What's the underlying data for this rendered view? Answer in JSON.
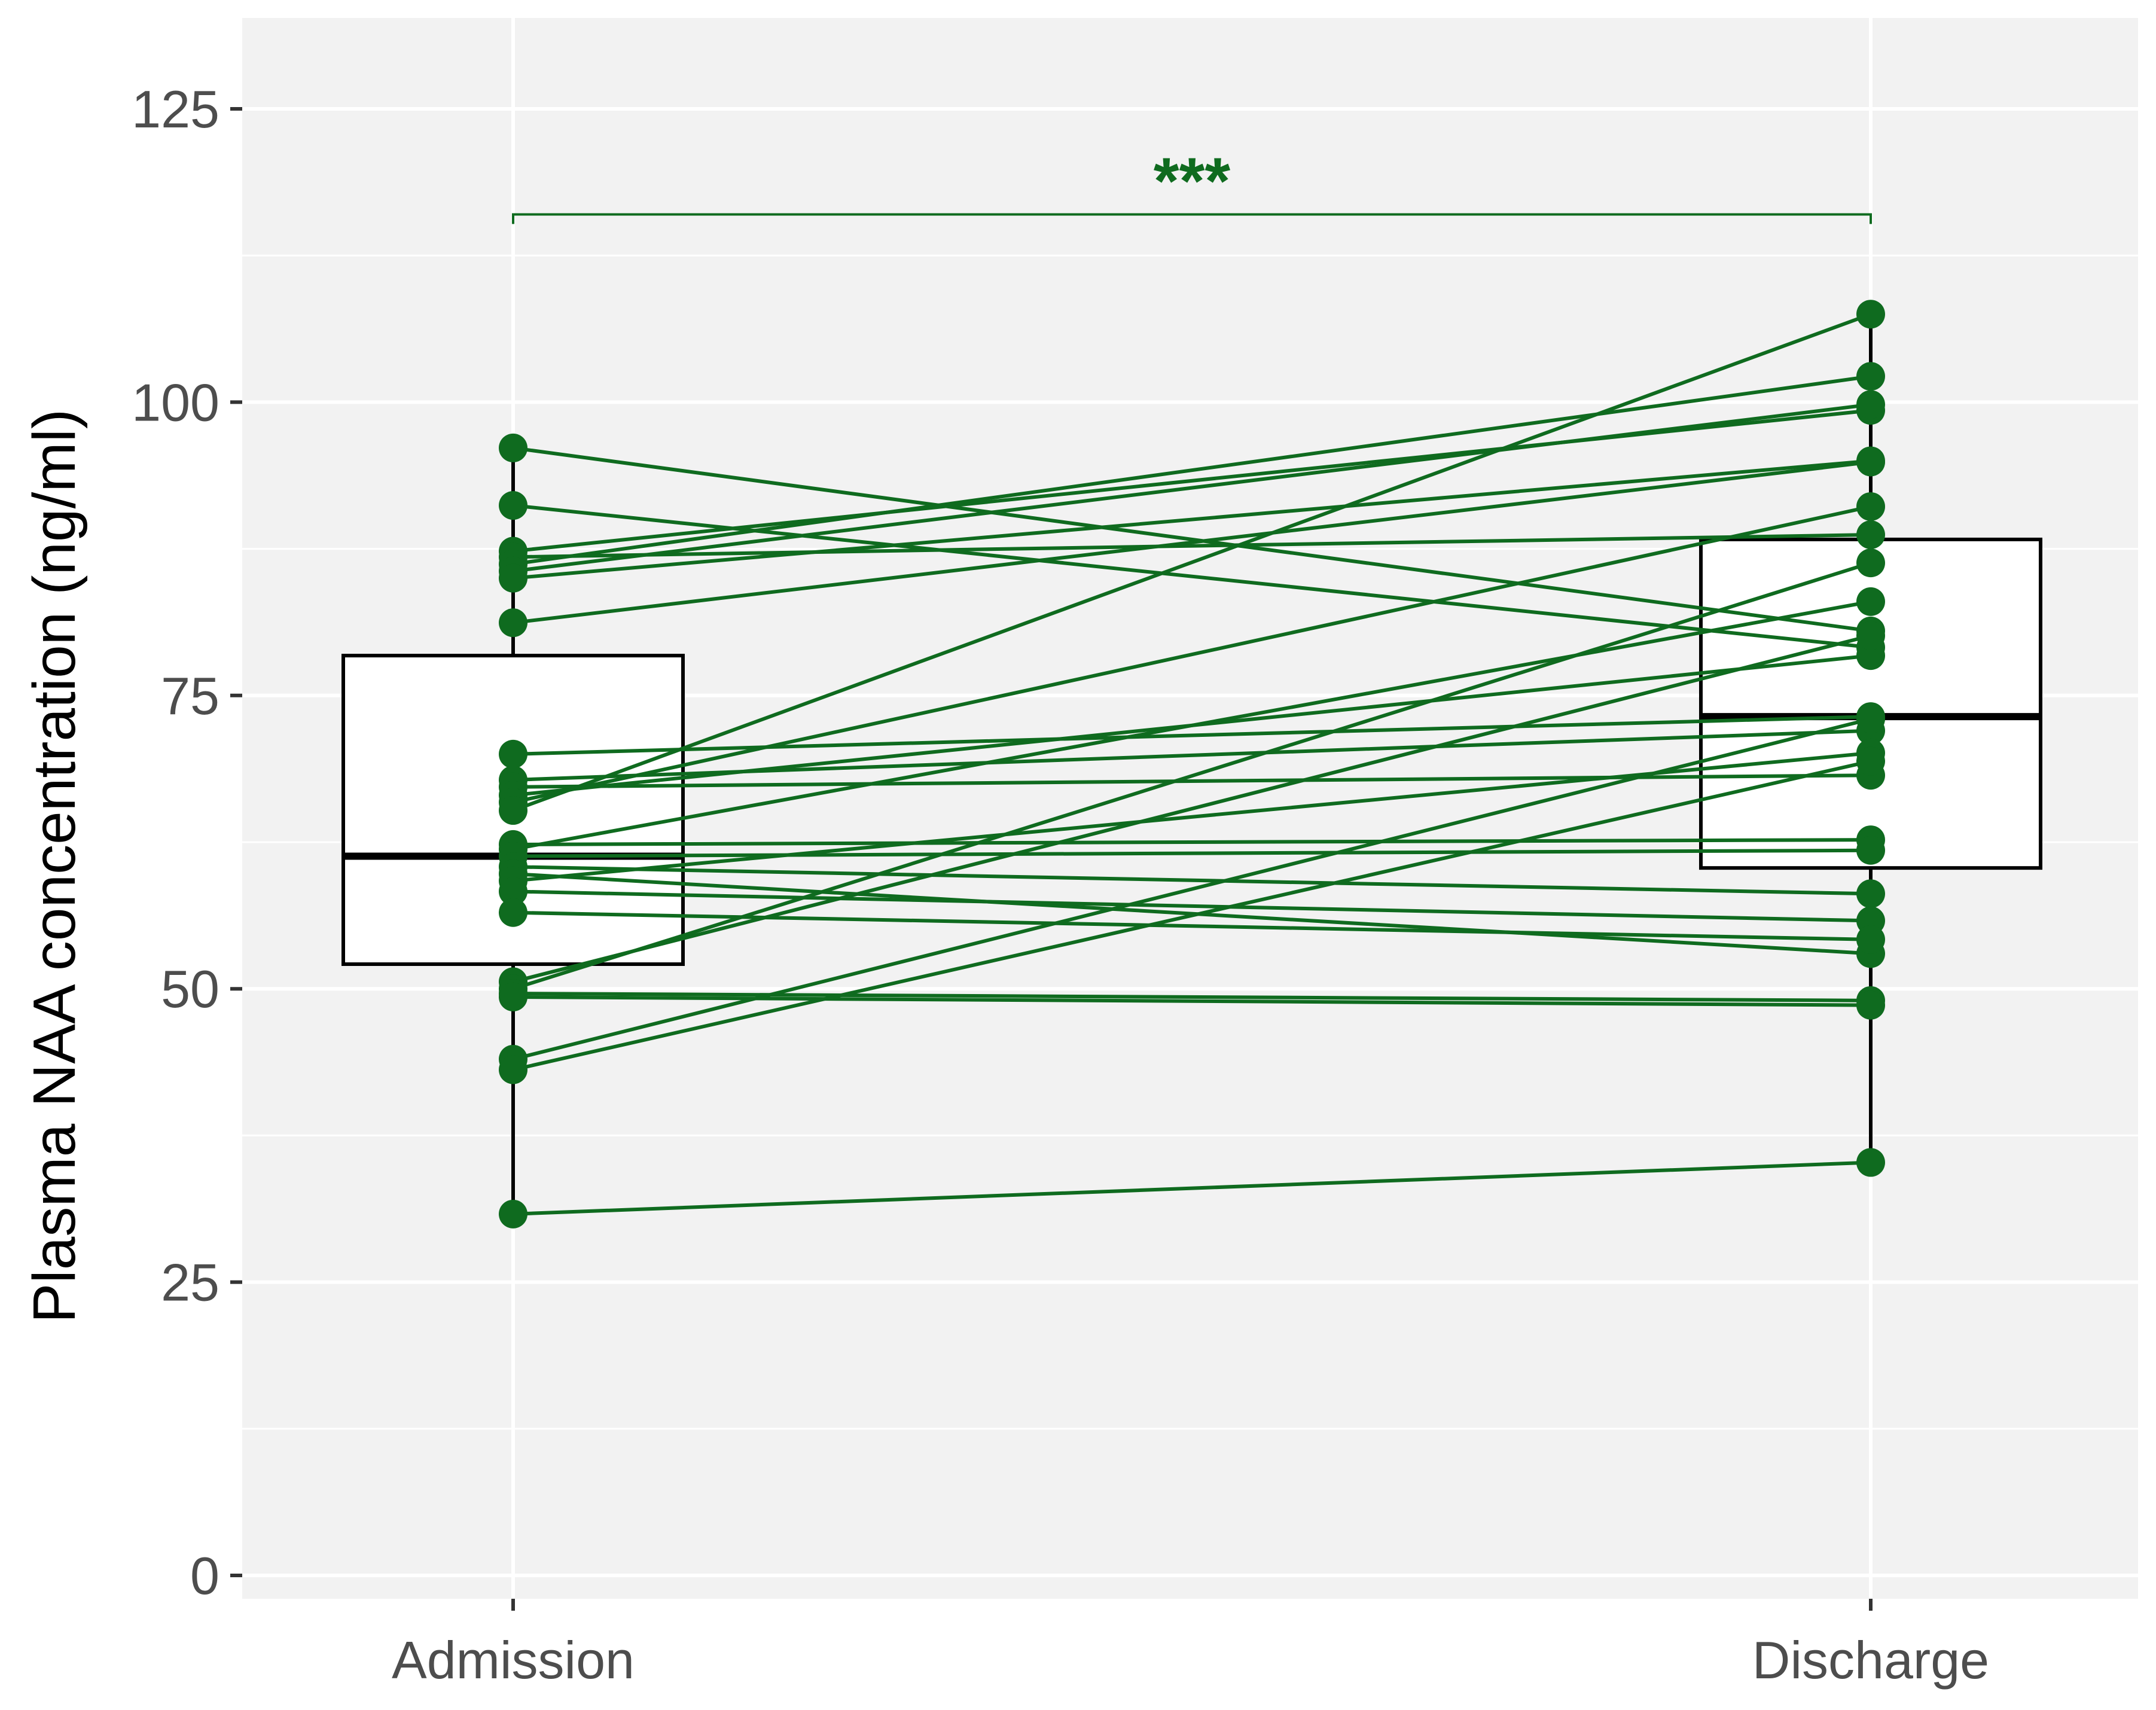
{
  "chart_data": {
    "type": "box",
    "title": "",
    "xlabel": "",
    "ylabel": "Plasma NAA concentration (ng/ml)",
    "ylim": [
      0,
      125
    ],
    "yticks": [
      0,
      25,
      50,
      75,
      100,
      125
    ],
    "ytick_labels": [
      "0",
      "25",
      "50",
      "75",
      "100",
      "125"
    ],
    "categories": [
      "Admission",
      "Discharge"
    ],
    "grid": true,
    "legend": "none",
    "colors": {
      "panel": "#f2f2f2",
      "grid": "#ffffff",
      "points": "#0f6b1f",
      "lines": "#0f6b1f",
      "box_fill": "#ffffff",
      "box_line": "#000000",
      "tick_text": "#4d4d4d"
    },
    "boxes": [
      {
        "category": "Admission",
        "q1": 52.1,
        "median": 61.3,
        "q3": 78.4,
        "whisker_low": 30.8,
        "whisker_high": 96.1
      },
      {
        "category": "Discharge",
        "q1": 60.3,
        "median": 73.2,
        "q3": 88.3,
        "whisker_low": 35.2,
        "whisker_high": 107.5
      }
    ],
    "paired": [
      [
        96.1,
        80.5
      ],
      [
        91.2,
        79.1
      ],
      [
        87.3,
        99.3
      ],
      [
        86.8,
        88.7
      ],
      [
        86.2,
        102.2
      ],
      [
        85.6,
        99.8
      ],
      [
        85.0,
        95.0
      ],
      [
        81.2,
        94.9
      ],
      [
        70.0,
        73.2
      ],
      [
        67.8,
        72.0
      ],
      [
        67.2,
        68.2
      ],
      [
        66.5,
        78.4
      ],
      [
        65.9,
        91.1
      ],
      [
        65.2,
        107.5
      ],
      [
        62.3,
        62.7
      ],
      [
        61.9,
        83.0
      ],
      [
        61.3,
        61.8
      ],
      [
        60.4,
        58.1
      ],
      [
        59.8,
        53.0
      ],
      [
        59.2,
        70.1
      ],
      [
        58.3,
        55.8
      ],
      [
        56.5,
        54.2
      ],
      [
        50.6,
        80.1
      ],
      [
        50.0,
        86.3
      ],
      [
        49.6,
        49.0
      ],
      [
        49.3,
        48.6
      ],
      [
        44.0,
        73.0
      ],
      [
        43.1,
        69.4
      ],
      [
        30.8,
        35.2
      ]
    ],
    "significance": {
      "from": "Admission",
      "to": "Discharge",
      "y": 116,
      "label": "***"
    }
  }
}
